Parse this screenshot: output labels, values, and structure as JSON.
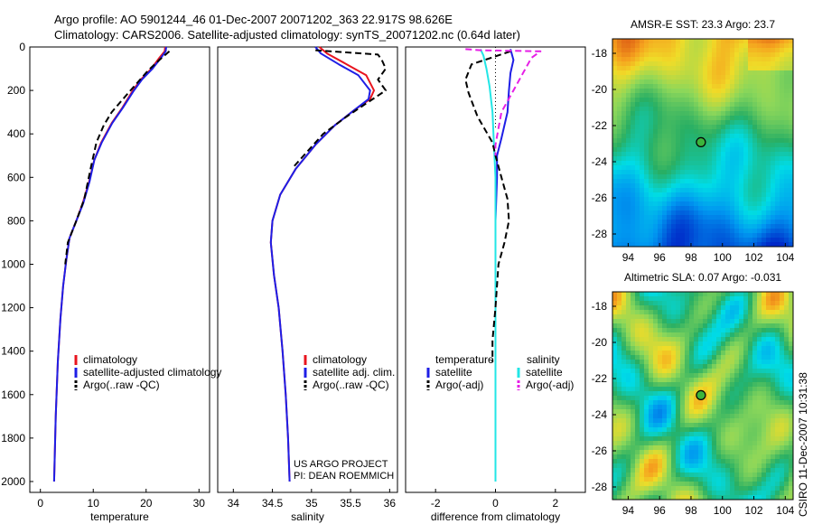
{
  "header": {
    "title_line1": "Argo profile: AO 5901244_46 01-Dec-2007 20071202_363 22.917S 98.626E",
    "title_line2": "Climatology: CARS2006. Satellite-adjusted climatology: synTS_20071202.nc (0.64d later)"
  },
  "credit": {
    "line1": "US ARGO PROJECT",
    "line2": "PI: DEAN ROEMMICH"
  },
  "side_label": "CSIRO 11-Dec-2007 10:31:38",
  "colors": {
    "climatology": "#e8141e",
    "satellite": "#1e1ee6",
    "argo": "#000000",
    "sal_satellite": "#22e6e6",
    "sal_argo": "#e61ee6"
  },
  "chart_data": [
    {
      "type": "line",
      "xlabel": "temperature",
      "xlim": [
        -2,
        32
      ],
      "ylim": [
        2050,
        0
      ],
      "xticks": [
        "0",
        "10",
        "20",
        "30"
      ],
      "yticks": [
        "0",
        "200",
        "400",
        "600",
        "800",
        "1000",
        "1200",
        "1400",
        "1600",
        "1800",
        "2000"
      ],
      "legend": [
        "climatology",
        "satellite-adjusted climatology",
        "Argo(..raw -QC)"
      ],
      "series": [
        {
          "name": "climatology",
          "color": "#e8141e",
          "style": "solid",
          "points": [
            [
              23.6,
              0
            ],
            [
              23.5,
              20
            ],
            [
              22.5,
              50
            ],
            [
              21,
              100
            ],
            [
              19,
              150
            ],
            [
              17.5,
              200
            ],
            [
              15.5,
              280
            ],
            [
              13.5,
              350
            ],
            [
              11.5,
              440
            ],
            [
              10.2,
              520
            ],
            [
              9.2,
              620
            ],
            [
              8,
              720
            ],
            [
              6.8,
              800
            ],
            [
              5.5,
              880
            ],
            [
              4.9,
              980
            ],
            [
              4.3,
              1100
            ],
            [
              3.8,
              1250
            ],
            [
              3.3,
              1450
            ],
            [
              2.9,
              1700
            ],
            [
              2.6,
              2000
            ]
          ]
        },
        {
          "name": "satellite-adjusted climatology",
          "color": "#1e1ee6",
          "style": "solid",
          "points": [
            [
              23.8,
              0
            ],
            [
              23.7,
              20
            ],
            [
              22.8,
              50
            ],
            [
              21.2,
              100
            ],
            [
              19.2,
              150
            ],
            [
              17.7,
              200
            ],
            [
              15.6,
              280
            ],
            [
              13.6,
              350
            ],
            [
              11.6,
              440
            ],
            [
              10.2,
              520
            ],
            [
              9.3,
              620
            ],
            [
              8.1,
              720
            ],
            [
              6.8,
              800
            ],
            [
              5.5,
              880
            ],
            [
              4.9,
              980
            ],
            [
              4.3,
              1100
            ],
            [
              3.8,
              1250
            ],
            [
              3.3,
              1450
            ],
            [
              2.9,
              1700
            ],
            [
              2.6,
              2000
            ]
          ]
        },
        {
          "name": "Argo(..raw -QC)",
          "color": "#000000",
          "style": "dashed",
          "points": [
            [
              24.4,
              20
            ],
            [
              22.5,
              60
            ],
            [
              20.3,
              110
            ],
            [
              18.5,
              160
            ],
            [
              16.5,
              215
            ],
            [
              13.5,
              300
            ],
            [
              12,
              360
            ],
            [
              10.6,
              440
            ],
            [
              9.5,
              560
            ],
            [
              8.3,
              700
            ],
            [
              6.8,
              800
            ],
            [
              5.2,
              900
            ],
            [
              4.7,
              1000
            ]
          ]
        }
      ]
    },
    {
      "type": "line",
      "xlabel": "salinity",
      "xlim": [
        33.8,
        36.1
      ],
      "ylim": [
        2050,
        0
      ],
      "xticks": [
        "34",
        "34.5",
        "35",
        "35.5",
        "36"
      ],
      "legend": [
        "climatology",
        "satellite adj. clim.",
        "Argo(..raw -QC)"
      ],
      "series": [
        {
          "name": "climatology",
          "color": "#e8141e",
          "style": "solid",
          "points": [
            [
              35.1,
              0
            ],
            [
              35.2,
              30
            ],
            [
              35.45,
              80
            ],
            [
              35.7,
              130
            ],
            [
              35.8,
              200
            ],
            [
              35.75,
              240
            ],
            [
              35.55,
              290
            ],
            [
              35.3,
              360
            ],
            [
              35.05,
              450
            ],
            [
              34.8,
              560
            ],
            [
              34.6,
              680
            ],
            [
              34.5,
              800
            ],
            [
              34.48,
              900
            ],
            [
              34.52,
              1050
            ],
            [
              34.58,
              1200
            ],
            [
              34.63,
              1400
            ],
            [
              34.67,
              1600
            ],
            [
              34.7,
              1800
            ],
            [
              34.72,
              2000
            ]
          ]
        },
        {
          "name": "satellite adj. clim.",
          "color": "#1e1ee6",
          "style": "solid",
          "points": [
            [
              35.05,
              0
            ],
            [
              35.12,
              30
            ],
            [
              35.35,
              80
            ],
            [
              35.6,
              130
            ],
            [
              35.75,
              200
            ],
            [
              35.73,
              240
            ],
            [
              35.55,
              290
            ],
            [
              35.3,
              360
            ],
            [
              35.05,
              450
            ],
            [
              34.8,
              560
            ],
            [
              34.6,
              680
            ],
            [
              34.5,
              800
            ],
            [
              34.48,
              900
            ],
            [
              34.52,
              1050
            ],
            [
              34.58,
              1200
            ],
            [
              34.63,
              1400
            ],
            [
              34.67,
              1600
            ],
            [
              34.7,
              1800
            ],
            [
              34.72,
              2000
            ]
          ]
        },
        {
          "name": "Argo(..raw -QC)",
          "color": "#000000",
          "style": "dashed",
          "points": [
            [
              35.05,
              15
            ],
            [
              35.45,
              25
            ],
            [
              35.85,
              35
            ],
            [
              35.9,
              60
            ],
            [
              35.95,
              100
            ],
            [
              35.85,
              150
            ],
            [
              35.95,
              200
            ],
            [
              35.7,
              260
            ],
            [
              35.45,
              320
            ],
            [
              35.15,
              400
            ],
            [
              34.95,
              480
            ],
            [
              34.75,
              560
            ]
          ]
        }
      ]
    },
    {
      "type": "line",
      "xlabel": "difference from climatology",
      "xlim": [
        -3,
        3
      ],
      "ylim": [
        2050,
        0
      ],
      "xticks": [
        "-2",
        "0",
        "2"
      ],
      "legend_temperature": {
        "heading": "temperature",
        "items": [
          "satellite",
          "Argo(-adj)"
        ]
      },
      "legend_salinity": {
        "heading": "salinity",
        "items": [
          "satellite",
          "Argo(-adj)"
        ]
      },
      "series": [
        {
          "name": "temperature satellite",
          "color": "#1e1ee6",
          "style": "solid",
          "points": [
            [
              0.5,
              10
            ],
            [
              0.6,
              60
            ],
            [
              0.5,
              120
            ],
            [
              0.45,
              200
            ],
            [
              0.4,
              300
            ],
            [
              0.2,
              420
            ],
            [
              0.05,
              500
            ],
            [
              0.05,
              600
            ],
            [
              0,
              800
            ],
            [
              0,
              1200
            ],
            [
              0,
              1600
            ],
            [
              0,
              2000
            ]
          ]
        },
        {
          "name": "salinity satellite",
          "color": "#22e6e6",
          "style": "solid",
          "points": [
            [
              -0.5,
              10
            ],
            [
              -0.4,
              40
            ],
            [
              -0.3,
              100
            ],
            [
              -0.2,
              180
            ],
            [
              -0.1,
              300
            ],
            [
              -0.05,
              450
            ],
            [
              0,
              600
            ],
            [
              0,
              800
            ],
            [
              0,
              1200
            ],
            [
              0,
              1600
            ],
            [
              0,
              2000
            ]
          ]
        },
        {
          "name": "temperature Argo(-adj)",
          "color": "#000000",
          "style": "dashed",
          "points": [
            [
              0.5,
              20
            ],
            [
              -0.8,
              80
            ],
            [
              -1,
              150
            ],
            [
              -0.9,
              210
            ],
            [
              -0.6,
              320
            ],
            [
              -0.1,
              440
            ],
            [
              0,
              500
            ],
            [
              0.2,
              600
            ],
            [
              0.4,
              700
            ],
            [
              0.45,
              800
            ],
            [
              0.3,
              900
            ],
            [
              0.1,
              1000
            ],
            [
              0,
              1200
            ],
            [
              -0.1,
              1350
            ],
            [
              -0.1,
              1450
            ]
          ]
        },
        {
          "name": "salinity Argo(-adj)",
          "color": "#e61ee6",
          "style": "dashed",
          "points": [
            [
              -1,
              10
            ],
            [
              -0.5,
              15
            ],
            [
              1.5,
              20
            ],
            [
              1.2,
              50
            ],
            [
              1,
              100
            ],
            [
              0.6,
              200
            ],
            [
              0.2,
              300
            ],
            [
              0,
              450
            ],
            [
              0,
              500
            ]
          ]
        }
      ]
    },
    {
      "type": "heatmap",
      "title": "AMSR-E SST: 23.3 Argo: 23.7",
      "xticks": [
        "94",
        "96",
        "98",
        "100",
        "102",
        "104"
      ],
      "yticks": [
        "-18",
        "-20",
        "-22",
        "-24",
        "-26",
        "-28"
      ],
      "xlim": [
        93,
        104.5
      ],
      "ylim": [
        -28.7,
        -17.2
      ],
      "marker": [
        98.63,
        -22.92
      ]
    },
    {
      "type": "heatmap",
      "title": "Altimetric SLA: 0.07 Argo: -0.031",
      "xticks": [
        "94",
        "96",
        "98",
        "100",
        "102",
        "104"
      ],
      "yticks": [
        "-18",
        "-20",
        "-22",
        "-24",
        "-26",
        "-28"
      ],
      "xlim": [
        93,
        104.5
      ],
      "ylim": [
        -28.7,
        -17.2
      ],
      "marker": [
        98.63,
        -22.92
      ]
    }
  ]
}
